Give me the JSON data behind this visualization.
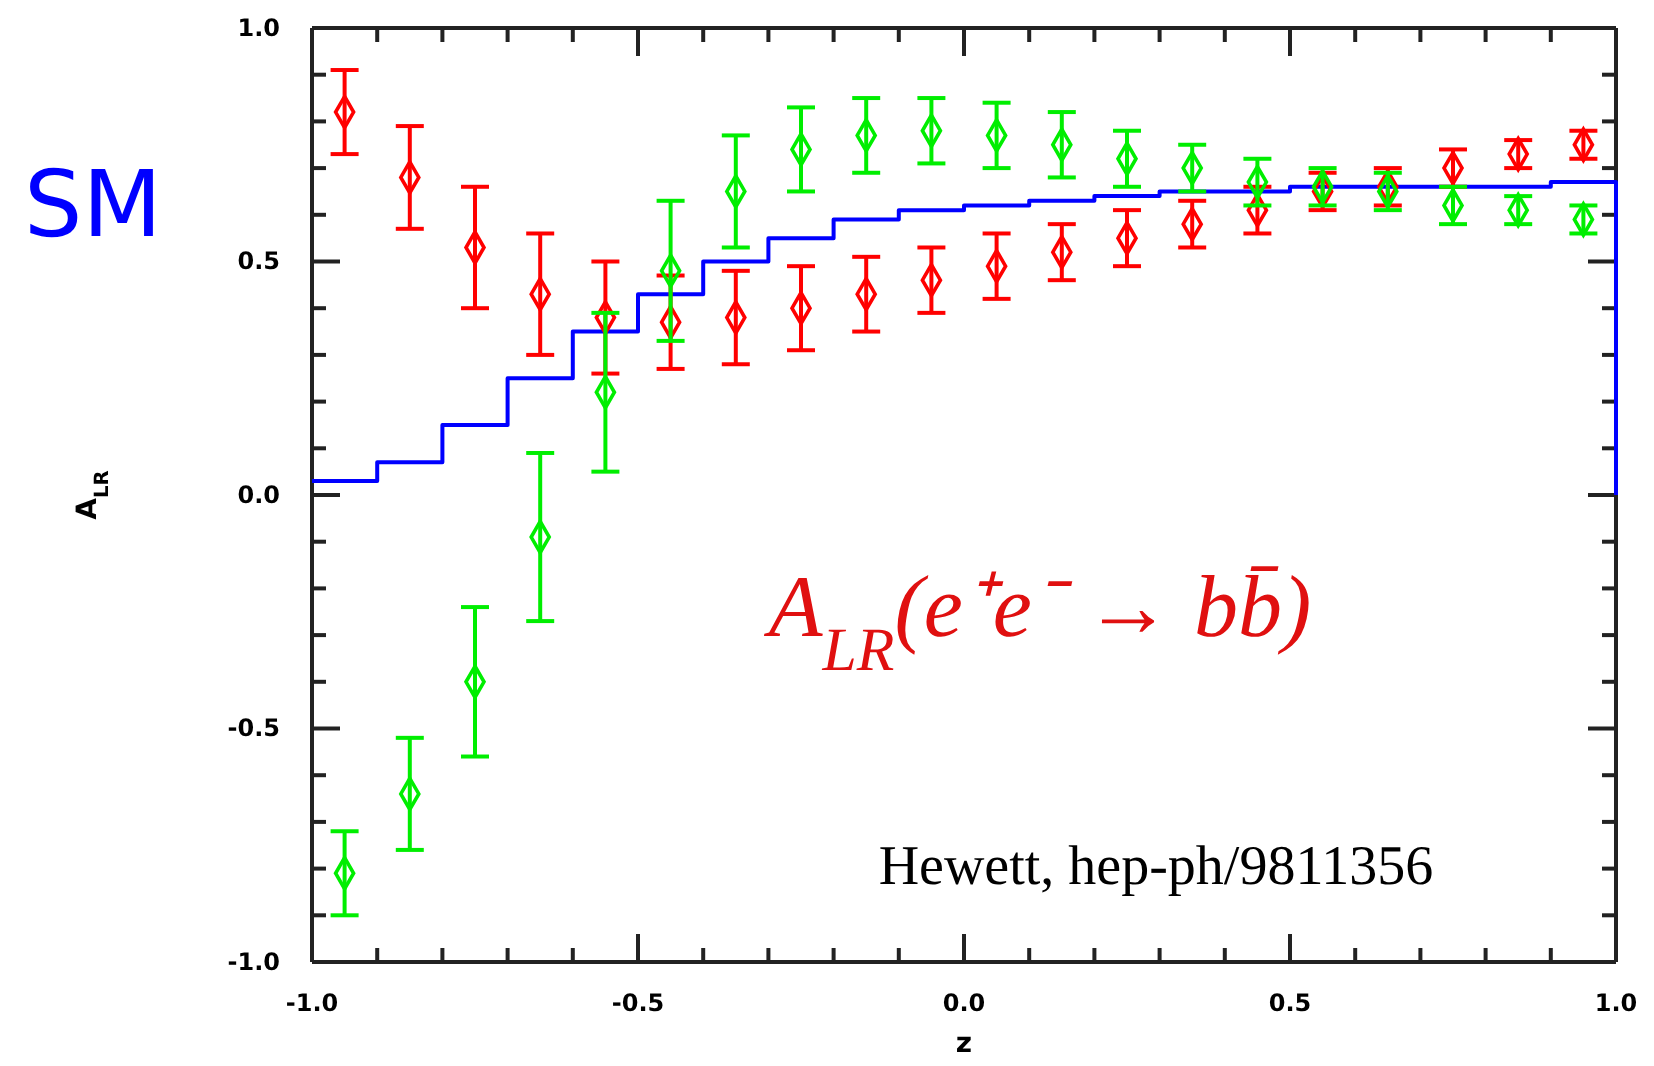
{
  "chart_data": {
    "type": "scatter",
    "xlabel": "z",
    "ylabel": "A$_{LR}$",
    "xlim": [
      -1.0,
      1.0
    ],
    "ylim": [
      -1.0,
      1.0
    ],
    "xticks": [
      {
        "value": -1.0,
        "label": "-1.0"
      },
      {
        "value": -0.9,
        "label": null
      },
      {
        "value": -0.8,
        "label": null
      },
      {
        "value": -0.7,
        "label": null
      },
      {
        "value": -0.6,
        "label": null
      },
      {
        "value": -0.5,
        "label": "-0.5"
      },
      {
        "value": -0.4,
        "label": null
      },
      {
        "value": -0.3,
        "label": null
      },
      {
        "value": -0.2,
        "label": null
      },
      {
        "value": -0.1,
        "label": null
      },
      {
        "value": 0.0,
        "label": "0.0"
      },
      {
        "value": 0.1,
        "label": null
      },
      {
        "value": 0.2,
        "label": null
      },
      {
        "value": 0.3,
        "label": null
      },
      {
        "value": 0.4,
        "label": null
      },
      {
        "value": 0.5,
        "label": "0.5"
      },
      {
        "value": 0.6,
        "label": null
      },
      {
        "value": 0.7,
        "label": null
      },
      {
        "value": 0.8,
        "label": null
      },
      {
        "value": 0.9,
        "label": null
      },
      {
        "value": 1.0,
        "label": "1.0"
      }
    ],
    "yticks": [
      {
        "value": -1.0,
        "label": "-1.0"
      },
      {
        "value": -0.9,
        "label": null
      },
      {
        "value": -0.8,
        "label": null
      },
      {
        "value": -0.7,
        "label": null
      },
      {
        "value": -0.6,
        "label": null
      },
      {
        "value": -0.5,
        "label": "-0.5"
      },
      {
        "value": -0.4,
        "label": null
      },
      {
        "value": -0.3,
        "label": null
      },
      {
        "value": -0.2,
        "label": null
      },
      {
        "value": -0.1,
        "label": null
      },
      {
        "value": 0.0,
        "label": "0.0"
      },
      {
        "value": 0.1,
        "label": null
      },
      {
        "value": 0.2,
        "label": null
      },
      {
        "value": 0.3,
        "label": null
      },
      {
        "value": 0.4,
        "label": null
      },
      {
        "value": 0.5,
        "label": "0.5"
      },
      {
        "value": 0.6,
        "label": null
      },
      {
        "value": 0.7,
        "label": null
      },
      {
        "value": 0.8,
        "label": null
      },
      {
        "value": 0.9,
        "label": null
      },
      {
        "value": 1.0,
        "label": "1.0"
      }
    ],
    "marker": "diamond",
    "grid": false,
    "series": [
      {
        "type": "step",
        "color": "#0000ff",
        "marker": "none",
        "x": [
          -1.0,
          -0.9,
          -0.8,
          -0.7,
          -0.6,
          -0.5,
          -0.4,
          -0.3,
          -0.2,
          -0.1,
          0.0,
          0.1,
          0.2,
          0.3,
          0.4,
          0.5,
          0.6,
          0.7,
          0.8,
          0.9,
          1.0
        ],
        "values": [
          0.03,
          0.07,
          0.15,
          0.25,
          0.35,
          0.43,
          0.5,
          0.55,
          0.59,
          0.61,
          0.62,
          0.63,
          0.64,
          0.65,
          0.65,
          0.66,
          0.66,
          0.66,
          0.66,
          0.67,
          0.0
        ]
      },
      {
        "color": "#ff0000",
        "x": [
          -0.95,
          -0.85,
          -0.75,
          -0.65,
          -0.55,
          -0.45,
          -0.35,
          -0.25,
          -0.15,
          -0.05,
          0.05,
          0.15,
          0.25,
          0.35,
          0.45,
          0.55,
          0.65,
          0.75,
          0.85,
          0.95
        ],
        "values": [
          0.82,
          0.68,
          0.53,
          0.43,
          0.38,
          0.37,
          0.38,
          0.4,
          0.43,
          0.46,
          0.49,
          0.52,
          0.55,
          0.58,
          0.61,
          0.65,
          0.66,
          0.7,
          0.73,
          0.75
        ],
        "errors": [
          0.09,
          0.11,
          0.13,
          0.13,
          0.12,
          0.1,
          0.1,
          0.09,
          0.08,
          0.07,
          0.07,
          0.06,
          0.06,
          0.05,
          0.05,
          0.04,
          0.04,
          0.04,
          0.03,
          0.03
        ]
      },
      {
        "color": "#00ee00",
        "x": [
          -0.95,
          -0.85,
          -0.75,
          -0.65,
          -0.55,
          -0.45,
          -0.35,
          -0.25,
          -0.15,
          -0.05,
          0.05,
          0.15,
          0.25,
          0.35,
          0.45,
          0.55,
          0.65,
          0.75,
          0.85,
          0.95
        ],
        "values": [
          -0.81,
          -0.64,
          -0.4,
          -0.09,
          0.22,
          0.48,
          0.65,
          0.74,
          0.77,
          0.78,
          0.77,
          0.75,
          0.72,
          0.7,
          0.67,
          0.66,
          0.65,
          0.62,
          0.61,
          0.59
        ],
        "errors": [
          0.09,
          0.12,
          0.16,
          0.18,
          0.17,
          0.15,
          0.12,
          0.09,
          0.08,
          0.07,
          0.07,
          0.07,
          0.06,
          0.05,
          0.05,
          0.04,
          0.04,
          0.04,
          0.03,
          0.03
        ]
      }
    ],
    "annotations": [
      "SM",
      "A$_{LR}$(e⁺e⁻ → bb̄)",
      "Hewett, hep-ph/9811356"
    ]
  }
}
